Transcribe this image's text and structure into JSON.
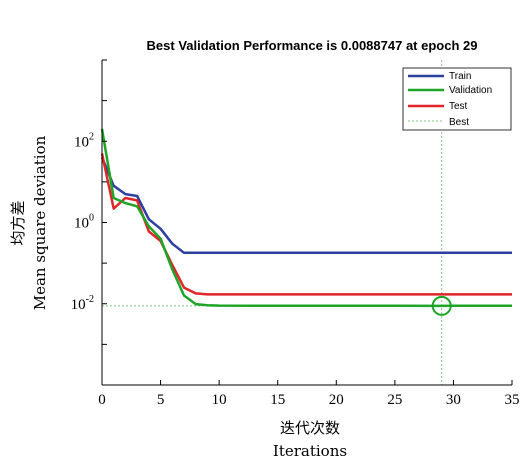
{
  "chart_data": {
    "type": "line",
    "title": "Best Validation Performance is 0.0088747 at epoch 29",
    "xlabel_cn": "迭代次数",
    "xlabel_en": "Iterations",
    "ylabel_cn": "均方差",
    "ylabel_en": "Mean square deviation",
    "yscale": "log",
    "xlim": [
      0,
      35
    ],
    "ylim_exp": [
      -4,
      4
    ],
    "x_ticks": [
      0,
      5,
      10,
      15,
      20,
      25,
      30,
      35
    ],
    "y_ticks": [
      {
        "label": "10",
        "exp": "2",
        "value": 100
      },
      {
        "label": "10",
        "exp": "0",
        "value": 1
      },
      {
        "label": "10",
        "exp": "-2",
        "value": 0.01
      }
    ],
    "legend_position": "top-right",
    "best_epoch": 29,
    "best_value": 0.0088747,
    "series": [
      {
        "name": "Train",
        "color": "#2b3f9e",
        "x": [
          0,
          1,
          2,
          3,
          4,
          5,
          6,
          7,
          8,
          9,
          10,
          15,
          20,
          25,
          30,
          35
        ],
        "y": [
          40,
          8,
          5,
          4.5,
          1.2,
          0.7,
          0.3,
          0.18,
          0.18,
          0.18,
          0.18,
          0.18,
          0.18,
          0.18,
          0.18,
          0.18
        ]
      },
      {
        "name": "Validation",
        "color": "#1ca526",
        "x": [
          0,
          1,
          2,
          3,
          4,
          5,
          6,
          7,
          8,
          9,
          10,
          15,
          20,
          25,
          29,
          30,
          35
        ],
        "y": [
          200,
          4,
          3,
          2.5,
          0.8,
          0.4,
          0.07,
          0.016,
          0.0098,
          0.0092,
          0.009,
          0.0089,
          0.0089,
          0.0089,
          0.0088747,
          0.0089,
          0.0089
        ]
      },
      {
        "name": "Test",
        "color": "#e0262a",
        "x": [
          0,
          1,
          2,
          3,
          4,
          5,
          6,
          7,
          8,
          9,
          10,
          15,
          20,
          25,
          30,
          35
        ],
        "y": [
          50,
          2.2,
          4,
          3.5,
          0.6,
          0.35,
          0.09,
          0.025,
          0.018,
          0.017,
          0.017,
          0.017,
          0.017,
          0.017,
          0.017,
          0.017
        ]
      }
    ],
    "best_series": {
      "name": "Best",
      "color": "#7fc97f"
    }
  }
}
